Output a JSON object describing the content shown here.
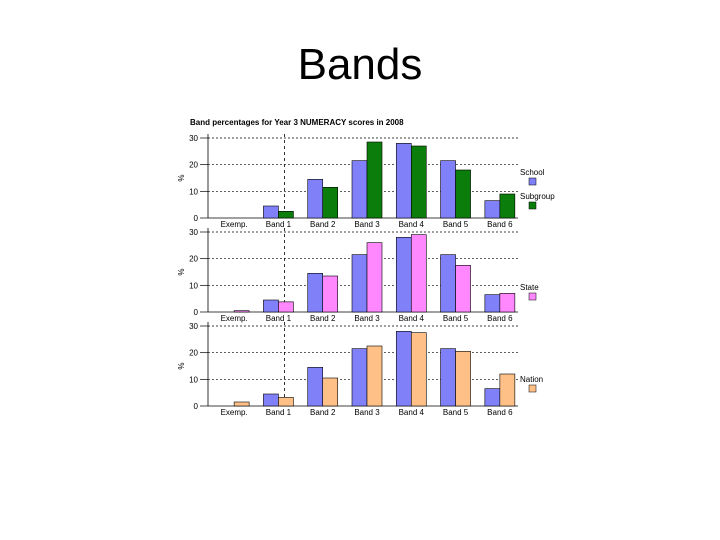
{
  "slide": {
    "title": "Bands"
  },
  "chart_data": {
    "type": "bar",
    "title": "Band percentages for Year 3 NUMERACY scores in 2008",
    "ylabel": "%",
    "ylim": [
      0,
      30
    ],
    "yticks": [
      0,
      10,
      20,
      30
    ],
    "categories": [
      "Exemp.",
      "Band 1",
      "Band 2",
      "Band 3",
      "Band 4",
      "Band 5",
      "Band 6"
    ],
    "school_color": "#8080f8",
    "panels": [
      {
        "series": [
          {
            "name": "School",
            "color": "#8080f8",
            "values": [
              0,
              4.5,
              14.5,
              21.5,
              28,
              21.5,
              6.5
            ]
          },
          {
            "name": "Subgroup",
            "color": "#0a7d0a",
            "values": [
              0,
              2.5,
              11.5,
              28.5,
              27,
              18,
              9
            ]
          }
        ]
      },
      {
        "series": [
          {
            "name": "School",
            "color": "#8080f8",
            "values": [
              0,
              4.5,
              14.5,
              21.5,
              28,
              21.5,
              6.5
            ]
          },
          {
            "name": "State",
            "color": "#ff88ff",
            "values": [
              0.5,
              3.8,
              13.5,
              26,
              29,
              17.5,
              7
            ]
          }
        ]
      },
      {
        "series": [
          {
            "name": "School",
            "color": "#8080f8",
            "values": [
              0,
              4.5,
              14.5,
              21.5,
              28,
              21.5,
              6.5
            ]
          },
          {
            "name": "Nation",
            "color": "#ffc088",
            "values": [
              1.5,
              3.2,
              10.5,
              22.5,
              27.5,
              20.5,
              12
            ]
          }
        ]
      }
    ]
  }
}
